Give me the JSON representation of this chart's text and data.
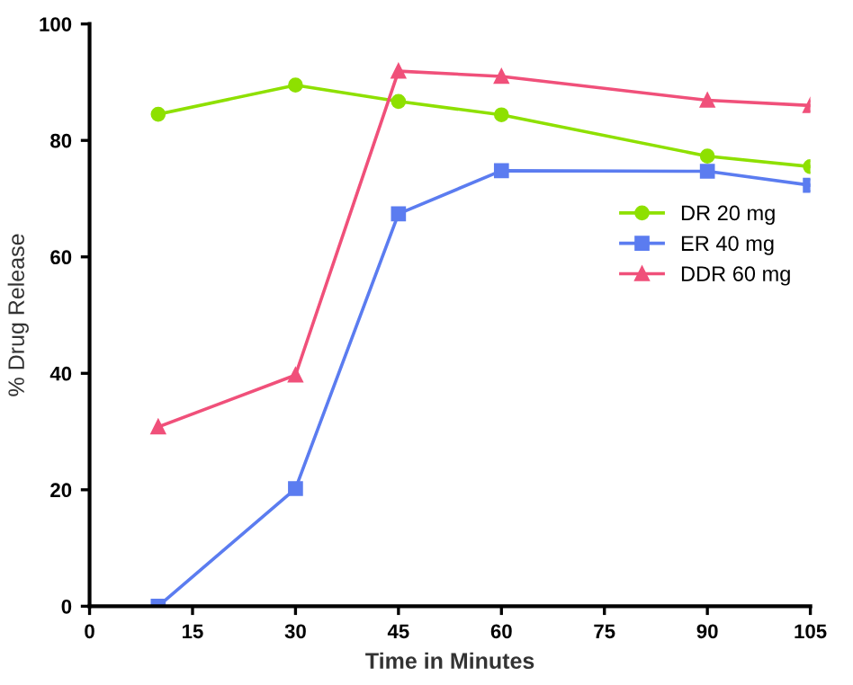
{
  "chart_data": {
    "type": "line",
    "xlabel": "Time in Minutes",
    "ylabel": "% Drug Release",
    "x": [
      10,
      30,
      45,
      60,
      90,
      105
    ],
    "xlim": [
      0,
      105
    ],
    "xticks": [
      0,
      15,
      30,
      45,
      60,
      75,
      90,
      105
    ],
    "ylim": [
      0,
      100
    ],
    "yticks": [
      0,
      20,
      40,
      60,
      80,
      100
    ],
    "grid": false,
    "legend": "right",
    "line_style": "solid",
    "series": [
      {
        "name": "DR 20 mg",
        "color": "#8ee000",
        "marker": "circle",
        "values": [
          84.5,
          89.5,
          86.7,
          84.4,
          77.3,
          75.5
        ]
      },
      {
        "name": "ER 40 mg",
        "color": "#5b7cf0",
        "marker": "square",
        "values": [
          0,
          20.2,
          67.4,
          74.8,
          74.7,
          72.3
        ]
      },
      {
        "name": "DDR 60 mg",
        "color": "#f0507a",
        "marker": "triangle",
        "values": [
          30.8,
          39.7,
          91.9,
          91,
          86.9,
          86
        ]
      }
    ]
  }
}
